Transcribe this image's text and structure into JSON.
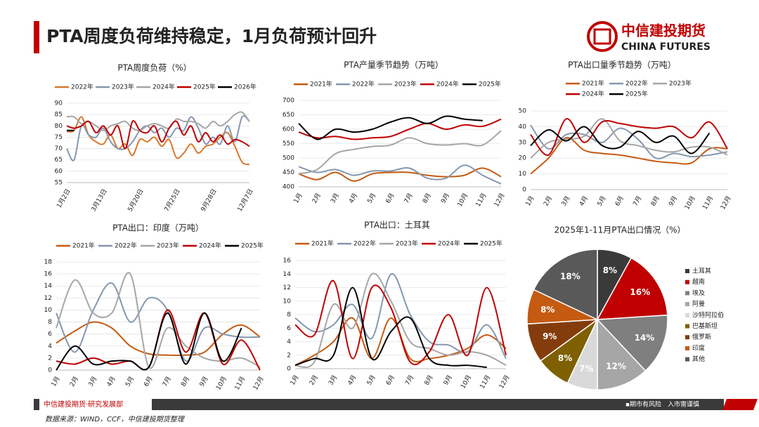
{
  "header": {
    "title": "PTA周度负荷维持稳定，1月负荷预计回升",
    "brand": "中信建投期货",
    "brand_en": "CHINA FUTURES"
  },
  "footer": {
    "department": "中信建投期货·研究发展部",
    "risk": "▪期市有风险　入市需谨慎",
    "source": "数据来源：WIND，CCF，中信建投期货整理"
  },
  "chart_data": [
    {
      "type": "line",
      "title": "PTA周度负荷（%）",
      "categories": [
        "1月2日",
        null,
        null,
        null,
        null,
        "3月13日",
        null,
        null,
        null,
        null,
        "5月20日",
        null,
        null,
        null,
        null,
        "7月25日",
        null,
        null,
        null,
        null,
        "9月28日",
        null,
        null,
        null,
        null,
        "12月7日"
      ],
      "ylim": [
        55,
        90
      ],
      "yticks": [
        55,
        60,
        65,
        70,
        75,
        80,
        85,
        90
      ],
      "grid": true,
      "series": [
        {
          "name": "2022年",
          "color": "#d9782b",
          "values": [
            77.5,
            78,
            84,
            76,
            73,
            72,
            76,
            70,
            72,
            67,
            74,
            73,
            75,
            71,
            74,
            66,
            68,
            72,
            68,
            71,
            72,
            75,
            77,
            71,
            64,
            63
          ]
        },
        {
          "name": "2023年",
          "color": "#8497b0",
          "values": [
            70,
            65,
            80,
            76,
            75,
            79,
            73,
            70,
            70,
            73,
            78,
            80,
            77,
            79,
            75,
            79,
            78,
            84,
            79,
            72,
            75,
            72,
            80,
            73,
            84,
            82
          ]
        },
        {
          "name": "2024年",
          "color": "#a6a6a6",
          "values": [
            84,
            84,
            81,
            82,
            80,
            78,
            80,
            81,
            82,
            79,
            78,
            80,
            81,
            80,
            79,
            83,
            82,
            82,
            81,
            79,
            82,
            80,
            82,
            85,
            86,
            82
          ]
        },
        {
          "name": "2025年",
          "color": "#c00000",
          "values": [
            80,
            79,
            80,
            82,
            77,
            80,
            76,
            80,
            70,
            82,
            78,
            77,
            80,
            73,
            79,
            82,
            76,
            80,
            73,
            77,
            73,
            76,
            72,
            74,
            73,
            71
          ]
        },
        {
          "name": "2026年",
          "color": "#000000",
          "values": [
            78,
            78,
            null,
            null,
            null,
            null,
            null,
            null,
            null,
            null,
            null,
            null,
            null,
            null,
            null,
            null,
            null,
            null,
            null,
            null,
            null,
            null,
            null,
            null,
            null,
            null
          ]
        }
      ]
    },
    {
      "type": "line",
      "title": "PTA产量季节趋势（万吨）",
      "categories": [
        "1月",
        "2月",
        "3月",
        "4月",
        "5月",
        "6月",
        "7月",
        "8月",
        "9月",
        "10月",
        "11月",
        "12月"
      ],
      "ylim": [
        400,
        700
      ],
      "yticks": [
        400,
        450,
        500,
        550,
        600,
        650,
        700
      ],
      "grid": true,
      "series": [
        {
          "name": "2021年",
          "color": "#c55a11",
          "values": [
            445,
            425,
            450,
            420,
            445,
            450,
            450,
            440,
            435,
            440,
            465,
            435
          ]
        },
        {
          "name": "2022年",
          "color": "#8497b0",
          "values": [
            470,
            450,
            460,
            440,
            455,
            455,
            465,
            430,
            430,
            475,
            440,
            410
          ]
        },
        {
          "name": "2023年",
          "color": "#a6a6a6",
          "values": [
            445,
            460,
            515,
            530,
            540,
            545,
            570,
            550,
            545,
            550,
            545,
            595
          ]
        },
        {
          "name": "2024年",
          "color": "#c00000",
          "values": [
            590,
            570,
            575,
            565,
            570,
            575,
            600,
            620,
            600,
            615,
            610,
            635
          ]
        },
        {
          "name": "2025年",
          "color": "#000000",
          "values": [
            620,
            565,
            600,
            590,
            600,
            625,
            640,
            620,
            645,
            635,
            630,
            null
          ]
        }
      ]
    },
    {
      "type": "line",
      "title": "PTA出口量季节趋势（万吨）",
      "categories": [
        "1月",
        "2月",
        "3月",
        "4月",
        "5月",
        "6月",
        "7月",
        "8月",
        "9月",
        "10月",
        "11月",
        "12月"
      ],
      "ylim": [
        0,
        50
      ],
      "yticks": [
        0,
        10,
        20,
        30,
        40,
        50
      ],
      "grid": true,
      "series": [
        {
          "name": "2021年",
          "color": "#c55a11",
          "values": [
            10,
            20,
            33,
            25,
            23,
            22,
            20,
            18,
            17,
            17,
            26,
            26
          ]
        },
        {
          "name": "2022年",
          "color": "#8497b0",
          "values": [
            41,
            26,
            35,
            35,
            30,
            39,
            32,
            20,
            23,
            21,
            22,
            24
          ]
        },
        {
          "name": "2023年",
          "color": "#a6a6a6",
          "values": [
            20,
            30,
            32,
            34,
            45,
            31,
            28,
            25,
            24,
            27,
            27,
            22
          ]
        },
        {
          "name": "2024年",
          "color": "#c00000",
          "values": [
            35,
            22,
            45,
            30,
            43,
            42,
            40,
            39,
            40,
            33,
            43,
            26
          ]
        },
        {
          "name": "2025年",
          "color": "#000000",
          "values": [
            28,
            38,
            31,
            40,
            28,
            27,
            37,
            30,
            34,
            23,
            36,
            null
          ]
        }
      ]
    },
    {
      "type": "line",
      "title": "PTA出口：印度（万吨）",
      "categories": [
        "1月",
        "2月",
        "3月",
        "4月",
        "5月",
        "6月",
        "7月",
        "8月",
        "9月",
        "10月",
        "11月",
        "12月"
      ],
      "ylim": [
        0,
        18
      ],
      "yticks": [
        0,
        2,
        4,
        6,
        8,
        10,
        12,
        14,
        16,
        18
      ],
      "grid": true,
      "series": [
        {
          "name": "2021年",
          "color": "#c55a11",
          "values": [
            4.5,
            6.5,
            8,
            7,
            4,
            2.7,
            2.5,
            2.5,
            3,
            6,
            7.5,
            5.5
          ]
        },
        {
          "name": "2022年",
          "color": "#8497b0",
          "values": [
            9.5,
            3,
            10,
            14.5,
            8,
            12,
            10,
            1.5,
            7,
            6,
            5.5,
            5.5
          ]
        },
        {
          "name": "2023年",
          "color": "#a6a6a6",
          "values": [
            7,
            15,
            9.5,
            9.5,
            16,
            0.5,
            7,
            4,
            2,
            1.5,
            2,
            0.5
          ]
        },
        {
          "name": "2024年",
          "color": "#c00000",
          "values": [
            1.5,
            1,
            2,
            1,
            1.5,
            0.5,
            10,
            3,
            9.5,
            1,
            5,
            0
          ]
        },
        {
          "name": "2025年",
          "color": "#000000",
          "values": [
            0,
            4,
            1,
            1.5,
            1.5,
            0.5,
            9.5,
            1,
            9.5,
            1.5,
            7,
            null
          ]
        }
      ]
    },
    {
      "type": "line",
      "title": "PTA出口：土耳其",
      "categories": [
        "1月",
        "2月",
        "3月",
        "4月",
        "5月",
        "6月",
        "7月",
        "8月",
        "9月",
        "10月",
        "11月",
        "12月"
      ],
      "ylim": [
        0,
        16
      ],
      "yticks": [
        0,
        2,
        4,
        6,
        8,
        10,
        12,
        14,
        16
      ],
      "grid": true,
      "series": [
        {
          "name": "2021年",
          "color": "#c55a11",
          "values": [
            0.5,
            2,
            4,
            7.5,
            1.5,
            7.5,
            1.5,
            1.5,
            2,
            3,
            5,
            3
          ]
        },
        {
          "name": "2022年",
          "color": "#8497b0",
          "values": [
            7.5,
            5.5,
            6.5,
            9.5,
            4.5,
            14,
            8,
            4,
            3.5,
            2.5,
            6.5,
            1.5
          ]
        },
        {
          "name": "2023年",
          "color": "#a6a6a6",
          "values": [
            0.5,
            1,
            9.5,
            6,
            14,
            10,
            4,
            3,
            2,
            2.5,
            2,
            0.5
          ]
        },
        {
          "name": "2024年",
          "color": "#c00000",
          "values": [
            6.5,
            5,
            13,
            1.5,
            12,
            9,
            1,
            2.5,
            8,
            2,
            12,
            2
          ]
        },
        {
          "name": "2025年",
          "color": "#000000",
          "values": [
            0.5,
            1.5,
            2,
            12,
            1.5,
            5.5,
            7.5,
            1.5,
            0.5,
            0.5,
            0.2,
            null
          ]
        }
      ]
    },
    {
      "type": "pie",
      "title": "2025年1-11月PTA出口情况（%）",
      "categories": [
        "土耳其",
        "越南",
        "埃及",
        "阿曼",
        "沙特阿拉伯",
        "巴基斯坦",
        "俄罗斯",
        "印度",
        "其他"
      ],
      "values": [
        8,
        16,
        14,
        12,
        7,
        8,
        9,
        8,
        18
      ],
      "value_labels": [
        "8%",
        "16%",
        "14%",
        "12%",
        "7%",
        "8%",
        "9%",
        "8%",
        "18%"
      ],
      "colors": [
        "#3a3a3a",
        "#c00000",
        "#7f7f7f",
        "#a6a6a6",
        "#d9d9d9",
        "#7f6000",
        "#843c0c",
        "#c55a11",
        "#595959"
      ]
    }
  ]
}
